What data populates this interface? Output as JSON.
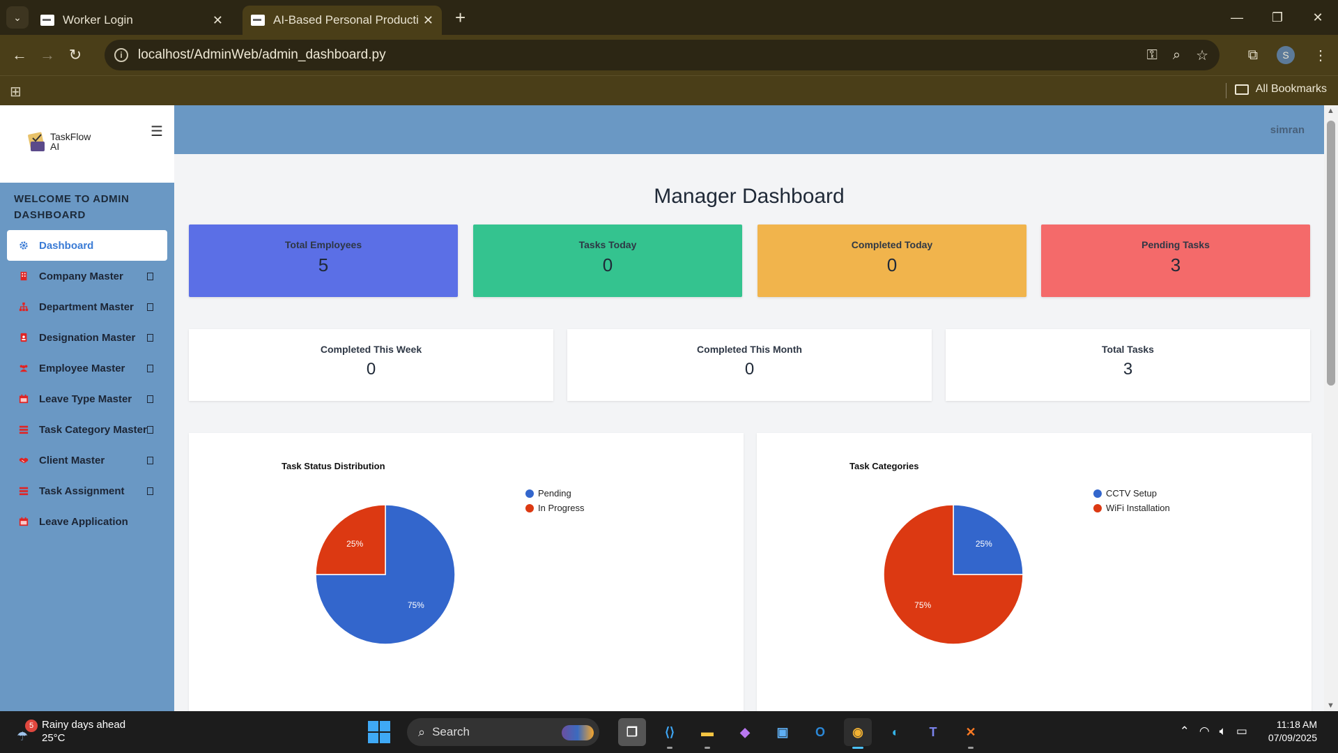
{
  "browser": {
    "tabs": [
      {
        "title": "Worker Login",
        "active": false
      },
      {
        "title": "AI-Based Personal Productivity",
        "active": true
      }
    ],
    "url": "localhost/AdminWeb/admin_dashboard.py",
    "bookmarks_label": "All Bookmarks",
    "profile_initial": "S"
  },
  "sidebar": {
    "logo_line1": "TaskFlow",
    "logo_line2": "AI",
    "welcome": "WELCOME TO ADMIN DASHBOARD",
    "items": [
      {
        "label": "Dashboard",
        "icon": "gear-icon",
        "active": true
      },
      {
        "label": "Company Master",
        "icon": "building-icon"
      },
      {
        "label": "Department Master",
        "icon": "sitemap-icon"
      },
      {
        "label": "Designation Master",
        "icon": "id-badge-icon"
      },
      {
        "label": "Employee Master",
        "icon": "users-icon"
      },
      {
        "label": "Leave Type Master",
        "icon": "calendar-icon"
      },
      {
        "label": "Task Category Master",
        "icon": "list-icon"
      },
      {
        "label": "Client Master",
        "icon": "handshake-icon"
      },
      {
        "label": "Task Assignment",
        "icon": "list-icon"
      },
      {
        "label": "Leave Application",
        "icon": "calendar-icon"
      }
    ]
  },
  "topbar": {
    "user": "simran"
  },
  "dashboard": {
    "title": "Manager Dashboard",
    "stats": [
      {
        "label": "Total Employees",
        "value": "5",
        "color": "#5b6fe6"
      },
      {
        "label": "Tasks Today",
        "value": "0",
        "color": "#34c38f"
      },
      {
        "label": "Completed Today",
        "value": "0",
        "color": "#f1b44c"
      },
      {
        "label": "Pending Tasks",
        "value": "3",
        "color": "#f46a6a"
      }
    ],
    "summary": [
      {
        "label": "Completed This Week",
        "value": "0"
      },
      {
        "label": "Completed This Month",
        "value": "0"
      },
      {
        "label": "Total Tasks",
        "value": "3"
      }
    ]
  },
  "chart_data": [
    {
      "type": "pie",
      "title": "Task Status Distribution",
      "categories": [
        "Pending",
        "In Progress"
      ],
      "values": [
        75,
        25
      ],
      "labels": [
        "75%",
        "25%"
      ],
      "colors": [
        "#3366cc",
        "#dc3912"
      ],
      "legend": "right"
    },
    {
      "type": "pie",
      "title": "Task Categories",
      "categories": [
        "CCTV Setup",
        "WiFi Installation"
      ],
      "values": [
        25,
        75
      ],
      "labels": [
        "25%",
        "75%"
      ],
      "colors": [
        "#3366cc",
        "#dc3912"
      ],
      "legend": "right"
    }
  ],
  "taskbar": {
    "weather_badge": "5",
    "weather_title": "Rainy days ahead",
    "weather_temp": "25°C",
    "search_placeholder": "Search",
    "time": "11:18 AM",
    "date": "07/09/2025"
  }
}
